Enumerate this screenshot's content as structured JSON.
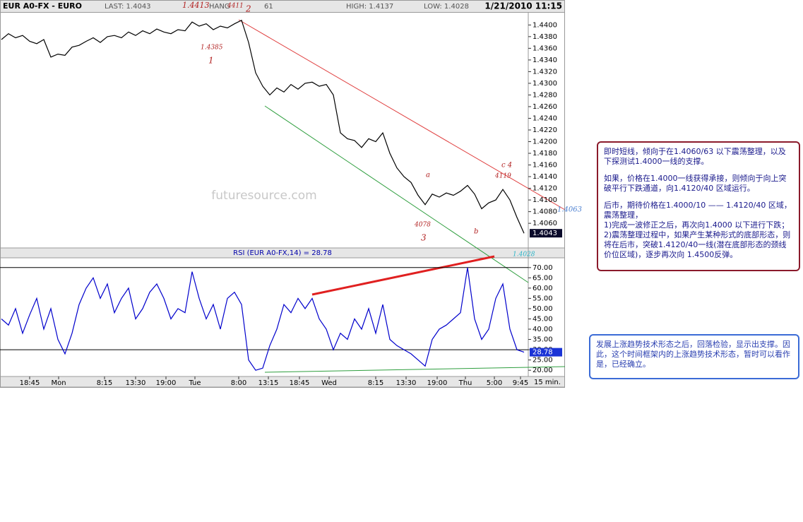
{
  "header": {
    "symbol": "EUR A0-FX - EURO",
    "last": "LAST: 1.4043",
    "hang": "HANG",
    "hang_value": "61",
    "high": "HIGH: 1.4137",
    "low": "LOW: 1.4028",
    "datetime": "1/21/2010 11:15"
  },
  "chart_data": [
    {
      "type": "line",
      "color": "#000000",
      "values": [
        1.4375,
        1.4385,
        1.4378,
        1.4382,
        1.4372,
        1.4368,
        1.4375,
        1.4345,
        1.435,
        1.4348,
        1.4362,
        1.4365,
        1.4372,
        1.4378,
        1.437,
        1.438,
        1.4382,
        1.4378,
        1.4388,
        1.4382,
        1.439,
        1.4385,
        1.4393,
        1.4388,
        1.4385,
        1.4392,
        1.439,
        1.4405,
        1.4398,
        1.4402,
        1.4392,
        1.4398,
        1.4395,
        1.4402,
        1.4408,
        1.437,
        1.4318,
        1.4295,
        1.428,
        1.4292,
        1.4285,
        1.4298,
        1.429,
        1.43,
        1.4302,
        1.4295,
        1.4298,
        1.428,
        1.4215,
        1.4205,
        1.4202,
        1.419,
        1.4205,
        1.42,
        1.4215,
        1.418,
        1.4155,
        1.414,
        1.413,
        1.4108,
        1.4092,
        1.411,
        1.4105,
        1.4112,
        1.4108,
        1.4115,
        1.4125,
        1.411,
        1.4085,
        1.4095,
        1.41,
        1.4118,
        1.41,
        1.407,
        1.4043
      ],
      "last_label": "1.4043",
      "xlim": [
        0,
        74.6
      ],
      "ylim": [
        1.4019,
        1.4421
      ],
      "yticks": [
        {
          "value": 1.406,
          "label": "1.4060"
        },
        {
          "value": 1.408,
          "label": "1.4080"
        },
        {
          "value": 1.41,
          "label": "1.4100"
        },
        {
          "value": 1.412,
          "label": "1.4120"
        },
        {
          "value": 1.414,
          "label": "1.4140"
        },
        {
          "value": 1.416,
          "label": "1.4160"
        },
        {
          "value": 1.418,
          "label": "1.4180"
        },
        {
          "value": 1.42,
          "label": "1.4200"
        },
        {
          "value": 1.422,
          "label": "1.4220"
        },
        {
          "value": 1.424,
          "label": "1.4240"
        },
        {
          "value": 1.426,
          "label": "1.4260"
        },
        {
          "value": 1.428,
          "label": "1.4280"
        },
        {
          "value": 1.43,
          "label": "1.4300"
        },
        {
          "value": 1.432,
          "label": "1.4320"
        },
        {
          "value": 1.434,
          "label": "1.4340"
        },
        {
          "value": 1.436,
          "label": "1.4360"
        },
        {
          "value": 1.438,
          "label": "1.4380"
        },
        {
          "value": 1.44,
          "label": "1.4400"
        }
      ],
      "watermark": "futuresource.com",
      "annotations": [
        {
          "text": "1.4413",
          "color": "#b22222"
        },
        {
          "text": "4411",
          "color": "#b22222"
        },
        {
          "text": "2",
          "color": "#b22222"
        },
        {
          "text": "1.4385",
          "color": "#b22222"
        },
        {
          "text": "1",
          "color": "#b22222"
        },
        {
          "text": "4078",
          "color": "#b22222"
        },
        {
          "text": "3",
          "color": "#b22222"
        },
        {
          "text": "a",
          "color": "#b22222"
        },
        {
          "text": "b",
          "color": "#b22222"
        },
        {
          "text": "c  4",
          "color": "#b22222"
        },
        {
          "text": "4119",
          "color": "#b22222"
        },
        {
          "text": "1.4063",
          "color": "#4a7fd0"
        },
        {
          "text": "1.4028",
          "color": "#2bb5c8"
        }
      ]
    },
    {
      "type": "line",
      "title": "RSI (EUR A0-FX,14) = 28.78",
      "color": "#0000cc",
      "values": [
        45,
        42,
        50,
        38,
        47,
        55,
        40,
        50,
        35,
        28,
        38,
        52,
        60,
        65,
        55,
        62,
        48,
        55,
        60,
        45,
        50,
        58,
        62,
        55,
        45,
        50,
        48,
        68,
        55,
        45,
        52,
        40,
        55,
        58,
        52,
        25,
        20,
        21,
        32,
        40,
        52,
        48,
        55,
        50,
        55,
        45,
        40,
        30,
        38,
        35,
        45,
        40,
        50,
        38,
        52,
        35,
        32,
        30,
        28,
        25,
        22,
        35,
        40,
        42,
        45,
        48,
        70,
        45,
        35,
        40,
        55,
        62,
        40,
        30,
        28.78
      ],
      "last_label": "28.78",
      "hlines": [
        70,
        30
      ],
      "xlim": [
        0,
        74.6
      ],
      "ylim": [
        17.3,
        74.4
      ],
      "yticks": [
        {
          "value": 20,
          "label": "20.00"
        },
        {
          "value": 25,
          "label": "25.00"
        },
        {
          "value": 30,
          "label": "30.00"
        },
        {
          "value": 35,
          "label": "35.00"
        },
        {
          "value": 40,
          "label": "40.00"
        },
        {
          "value": 45,
          "label": "45.00"
        },
        {
          "value": 50,
          "label": "50.00"
        },
        {
          "value": 55,
          "label": "55.00"
        },
        {
          "value": 60,
          "label": "60.00"
        },
        {
          "value": 65,
          "label": "65.00"
        },
        {
          "value": 70,
          "label": "70.00"
        }
      ],
      "xticks": [
        {
          "value": 4,
          "label": "18:45"
        },
        {
          "value": 8.1,
          "label": "Mon"
        },
        {
          "value": 14.6,
          "label": "8:15"
        },
        {
          "value": 19,
          "label": "13:30"
        },
        {
          "value": 23.3,
          "label": "19:00"
        },
        {
          "value": 27.4,
          "label": "Tue"
        },
        {
          "value": 33.6,
          "label": "8:00"
        },
        {
          "value": 37.8,
          "label": "13:15"
        },
        {
          "value": 42.2,
          "label": "18:45"
        },
        {
          "value": 46.4,
          "label": "Wed"
        },
        {
          "value": 53,
          "label": "8:15"
        },
        {
          "value": 57.3,
          "label": "13:30"
        },
        {
          "value": 61.7,
          "label": "19:00"
        },
        {
          "value": 65.7,
          "label": "Thu"
        },
        {
          "value": 69.8,
          "label": "5:00"
        },
        {
          "value": 73.5,
          "label": "9:45"
        }
      ],
      "xunit": "15 min."
    }
  ],
  "notes": [
    [
      "即时短线，倾向于在1.4060/63 以下震荡整理，以及下探测试1.4000一线的支撑。",
      "如果，价格在1.4000一线获得承接，则倾向于向上突破平行下跌通道，向1.4120/40 区域运行。",
      "后市，期待价格在1.4000/10 —— 1.4120/40 区域，震荡整理，",
      "1)完成一波修正之后，再次向1.4000 以下进行下跌；",
      "2)震荡整理过程中，如果产生某种形式的底部形态，则将在后市，突破1.4120/40一线(潜在底部形态的颈线价位区域)，逐步再次向 1.4500反弹。"
    ],
    [
      "发展上涨趋势技术形态之后，回落检验，显示出支撑。因此，这个时间框架内的上涨趋势技术形态，暂时可以看作是，已经确立。"
    ]
  ]
}
